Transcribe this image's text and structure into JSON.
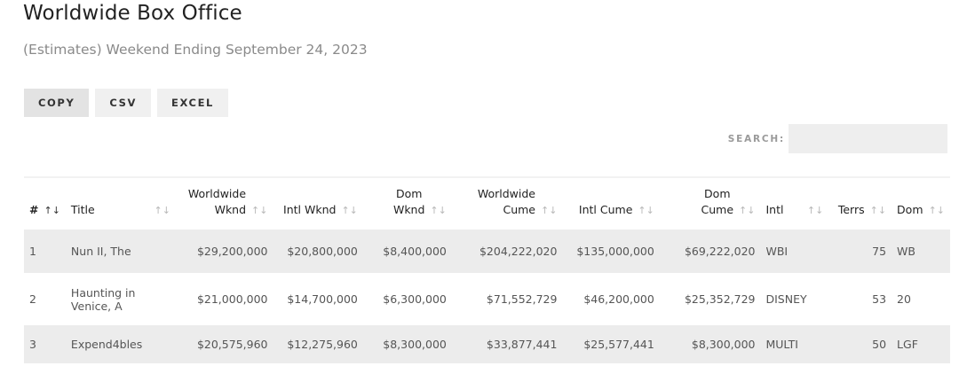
{
  "page": {
    "title": "Worldwide Box Office",
    "subtitle": "(Estimates) Weekend Ending September 24, 2023"
  },
  "buttons": {
    "copy": "COPY",
    "csv": "CSV",
    "excel": "EXCEL"
  },
  "search": {
    "label": "SEARCH:",
    "value": ""
  },
  "table": {
    "headers": {
      "num": "#",
      "title": "Title",
      "ww_wknd": [
        "Worldwide",
        "Wknd"
      ],
      "intl_wknd": "Intl Wknd",
      "dom_wknd": [
        "Dom",
        "Wknd"
      ],
      "ww_cume": [
        "Worldwide",
        "Cume"
      ],
      "intl_cume": "Intl Cume",
      "dom_cume": [
        "Dom",
        "Cume"
      ],
      "intl": "Intl",
      "terrs": "Terrs",
      "dom": "Dom"
    },
    "sort_icons": {
      "neutral": "↑↓",
      "active": "↑↓"
    },
    "rows": [
      {
        "num": "1",
        "title": "Nun II, The",
        "ww_wknd": "$29,200,000",
        "intl_wknd": "$20,800,000",
        "dom_wknd": "$8,400,000",
        "ww_cume": "$204,222,020",
        "intl_cume": "$135,000,000",
        "dom_cume": "$69,222,020",
        "intl": "WBI",
        "terrs": "75",
        "dom": "WB"
      },
      {
        "num": "2",
        "title": "Haunting in Venice, A",
        "ww_wknd": "$21,000,000",
        "intl_wknd": "$14,700,000",
        "dom_wknd": "$6,300,000",
        "ww_cume": "$71,552,729",
        "intl_cume": "$46,200,000",
        "dom_cume": "$25,352,729",
        "intl": "DISNEY",
        "terrs": "53",
        "dom": "20"
      },
      {
        "num": "3",
        "title": "Expend4bles",
        "ww_wknd": "$20,575,960",
        "intl_wknd": "$12,275,960",
        "dom_wknd": "$8,300,000",
        "ww_cume": "$33,877,441",
        "intl_cume": "$25,577,441",
        "dom_cume": "$8,300,000",
        "intl": "MULTI",
        "terrs": "50",
        "dom": "LGF"
      }
    ]
  },
  "colors": {
    "button_bg": "#f0f0f0",
    "row_stripe": "#ececec",
    "search_bg": "#eeeeee",
    "sort_icon": "#b8b8b8"
  }
}
